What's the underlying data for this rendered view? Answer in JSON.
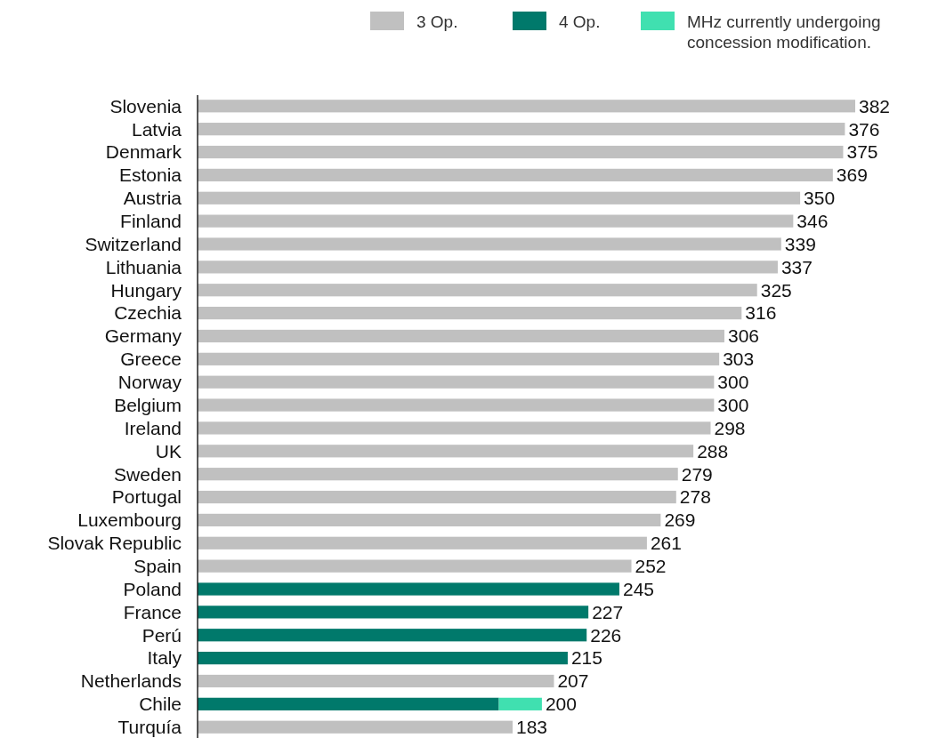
{
  "chart_data": {
    "type": "bar",
    "orientation": "horizontal",
    "stacked": true,
    "legend": "top right",
    "categories": [
      "Slovenia",
      "Latvia",
      "Denmark",
      "Estonia",
      "Austria",
      "Finland",
      "Switzerland",
      "Lithuania",
      "Hungary",
      "Czechia",
      "Germany",
      "Greece",
      "Norway",
      "Belgium",
      "Ireland",
      "UK",
      "Sweden",
      "Portugal",
      "Luxembourg",
      "Slovak Republic",
      "Spain",
      "Poland",
      "France",
      "Perú",
      "Italy",
      "Netherlands",
      "Chile",
      "Turquía"
    ],
    "tick_labels": "y",
    "series": [
      {
        "name": "3 Op.",
        "color": "#c0c0c0",
        "values": [
          382,
          376,
          375,
          369,
          350,
          346,
          339,
          337,
          325,
          316,
          306,
          303,
          300,
          300,
          298,
          288,
          279,
          278,
          269,
          261,
          252,
          null,
          null,
          null,
          null,
          207,
          null,
          183
        ],
        "value_labels": [
          "382",
          "376",
          "375",
          "369",
          "350",
          "346",
          "339",
          "337",
          "325",
          "316",
          "306",
          "303",
          "300",
          "300",
          "298",
          "288",
          "279",
          "278",
          "269",
          "261",
          "252",
          null,
          null,
          null,
          null,
          "207",
          null,
          "183"
        ]
      },
      {
        "name": "4 Op.",
        "color": "#00796b",
        "values": [
          null,
          null,
          null,
          null,
          null,
          null,
          null,
          null,
          null,
          null,
          null,
          null,
          null,
          null,
          null,
          null,
          null,
          null,
          null,
          null,
          null,
          245,
          227,
          226,
          215,
          null,
          175,
          null
        ],
        "value_labels": [
          null,
          null,
          null,
          null,
          null,
          null,
          null,
          null,
          null,
          null,
          null,
          null,
          null,
          null,
          null,
          null,
          null,
          null,
          null,
          null,
          null,
          "245",
          "227",
          "226",
          "215",
          null,
          null,
          null
        ]
      },
      {
        "name": "MHz currently undergoing concession modification.",
        "color": "#40e0b0",
        "values": [
          null,
          null,
          null,
          null,
          null,
          null,
          null,
          null,
          null,
          null,
          null,
          null,
          null,
          null,
          null,
          null,
          null,
          null,
          null,
          null,
          null,
          null,
          null,
          null,
          null,
          null,
          25,
          null
        ]
      }
    ],
    "totals": [
      null,
      null,
      null,
      null,
      null,
      null,
      null,
      null,
      null,
      null,
      null,
      null,
      null,
      null,
      null,
      null,
      null,
      null,
      null,
      null,
      null,
      null,
      null,
      null,
      null,
      null,
      "200",
      null
    ]
  }
}
